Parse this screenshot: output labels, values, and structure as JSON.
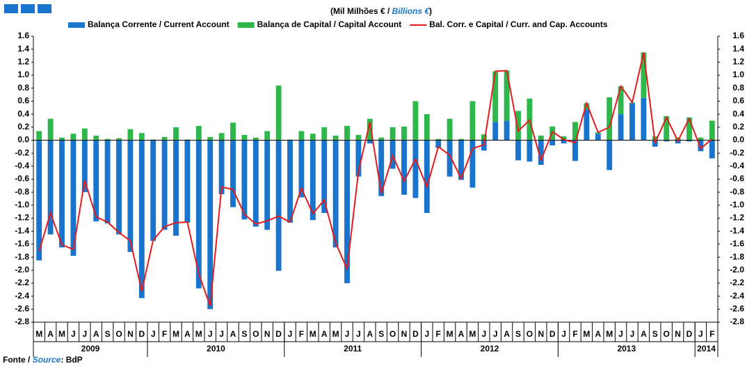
{
  "chart_data": {
    "type": "bar",
    "subtitle": "(Mil Milhões € / ",
    "subtitle_en": "Billions €",
    "subtitle_end": ")",
    "source_label": "Fonte / ",
    "source_label_en": "Source",
    "source_value": ": BdP",
    "categories": [
      "M",
      "A",
      "M",
      "J",
      "J",
      "A",
      "S",
      "O",
      "N",
      "D",
      "J",
      "F",
      "M",
      "A",
      "M",
      "J",
      "J",
      "A",
      "S",
      "O",
      "N",
      "D",
      "J",
      "F",
      "M",
      "A",
      "M",
      "J",
      "J",
      "A",
      "S",
      "O",
      "N",
      "D",
      "J",
      "F",
      "M",
      "A",
      "M",
      "J",
      "J",
      "A",
      "S",
      "O",
      "N",
      "D",
      "J",
      "F",
      "M",
      "A",
      "M",
      "J",
      "J",
      "A",
      "S",
      "O",
      "N",
      "D",
      "J",
      "F"
    ],
    "year_groups": [
      {
        "label": "2009",
        "count": 10
      },
      {
        "label": "2010",
        "count": 12
      },
      {
        "label": "2011",
        "count": 12
      },
      {
        "label": "2012",
        "count": 12
      },
      {
        "label": "2013",
        "count": 12
      },
      {
        "label": "2014",
        "count": 2
      }
    ],
    "series": [
      {
        "name": "Balança Corrente / Current Account",
        "color": "#1874cd",
        "kind": "bar",
        "values": [
          -1.85,
          -1.45,
          -1.65,
          -1.78,
          -0.8,
          -1.25,
          -1.28,
          -1.45,
          -1.72,
          -2.43,
          -1.55,
          -1.38,
          -1.47,
          -1.27,
          -2.28,
          -2.6,
          -0.83,
          -1.03,
          -1.22,
          -1.33,
          -1.38,
          -2.01,
          -1.27,
          -0.88,
          -1.23,
          -1.12,
          -1.65,
          -2.2,
          -0.56,
          -0.05,
          -0.86,
          -0.44,
          -0.84,
          -0.89,
          -1.12,
          -0.12,
          -0.56,
          -0.61,
          -0.73,
          -0.16,
          0.28,
          0.3,
          -0.31,
          -0.33,
          -0.38,
          -0.08,
          -0.05,
          -0.32,
          0.47,
          0.1,
          -0.46,
          0.4,
          0.57,
          0.65,
          -0.1,
          -0.02,
          -0.05,
          -0.02,
          -0.17,
          -0.28
        ]
      },
      {
        "name": "Balança de Capital / Capital Account",
        "color": "#2eb84b",
        "kind": "bar",
        "values": [
          0.14,
          0.33,
          0.04,
          0.1,
          0.18,
          0.07,
          0.02,
          0.03,
          0.17,
          0.11,
          0.01,
          0.05,
          0.2,
          0.01,
          0.22,
          0.05,
          0.11,
          0.27,
          0.08,
          0.04,
          0.14,
          0.84,
          0.01,
          0.14,
          0.1,
          0.2,
          0.07,
          0.22,
          0.08,
          0.33,
          0.04,
          0.2,
          0.21,
          0.6,
          0.4,
          0.02,
          0.33,
          0.02,
          0.6,
          0.09,
          0.78,
          0.77,
          0.45,
          0.64,
          0.07,
          0.21,
          0.06,
          0.28,
          0.1,
          0.02,
          0.66,
          0.43,
          0.01,
          0.7,
          0.06,
          0.37,
          0.04,
          0.35,
          0.04,
          0.3
        ]
      },
      {
        "name": "Bal. Corr. e Capital / Curr. and Cap. Accounts",
        "color": "#e41a1c",
        "kind": "line",
        "values": [
          -1.71,
          -1.12,
          -1.61,
          -1.68,
          -0.62,
          -1.18,
          -1.26,
          -1.42,
          -1.55,
          -2.32,
          -1.54,
          -1.33,
          -1.27,
          -1.26,
          -2.06,
          -2.55,
          -0.72,
          -0.76,
          -1.14,
          -1.29,
          -1.24,
          -1.17,
          -1.26,
          -0.74,
          -1.13,
          -0.92,
          -1.58,
          -1.98,
          -0.48,
          0.28,
          -0.82,
          -0.24,
          -0.63,
          -0.29,
          -0.72,
          -0.1,
          -0.23,
          -0.59,
          -0.13,
          -0.07,
          1.06,
          1.07,
          0.14,
          0.31,
          -0.31,
          0.13,
          0.01,
          -0.04,
          0.57,
          0.12,
          0.2,
          0.83,
          0.58,
          1.35,
          -0.04,
          0.35,
          -0.01,
          0.33,
          -0.13,
          0.02
        ]
      }
    ],
    "ylim": [
      -2.8,
      1.6
    ],
    "yticks": [
      -2.8,
      -2.6,
      -2.4,
      -2.2,
      {
        "value": -2.0,
        "label": "-2.0"
      },
      -1.8,
      -1.6,
      -1.4,
      -1.2,
      {
        "value": -1.0,
        "label": "-1.0"
      },
      -0.8,
      -0.6,
      -0.4,
      -0.2,
      {
        "value": 0,
        "label": "0.0"
      },
      0.2,
      0.4,
      0.6,
      0.8,
      {
        "value": 1.0,
        "label": "1.0"
      },
      1.2,
      1.4,
      1.6
    ],
    "grid": false
  }
}
